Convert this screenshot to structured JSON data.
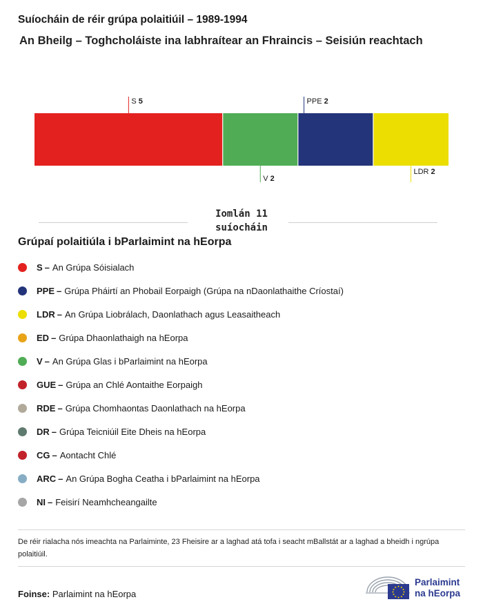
{
  "chart_data": {
    "type": "bar",
    "stacked": true,
    "orientation": "horizontal",
    "title": "Suíocháin de réir grúpa polaitiúil – 1989-1994",
    "subtitle": "An Bheilg – Toghcholáiste ina labhraítear an Fhraincis – Seisiún reachtach",
    "total_label": "Iomlán 11 suíocháin",
    "total": 11,
    "segments": [
      {
        "name": "S",
        "value": 5,
        "color": "#e3211f",
        "label_side": "top"
      },
      {
        "name": "V",
        "value": 2,
        "color": "#50ac55",
        "label_side": "bottom"
      },
      {
        "name": "PPE",
        "value": 2,
        "color": "#24347a",
        "label_side": "top"
      },
      {
        "name": "LDR",
        "value": 2,
        "color": "#ebde00",
        "label_side": "bottom"
      }
    ]
  },
  "legend": {
    "title": "Grúpaí polaitiúla i bParlaimint na hEorpa",
    "items": [
      {
        "abbr": "S",
        "label": "An Grúpa Sóisialach",
        "color": "#e3211f"
      },
      {
        "abbr": "PPE",
        "label": "Grúpa Pháirtí an Phobail Eorpaigh (Grúpa na nDaonlathaithe Críostaí)",
        "color": "#24347a"
      },
      {
        "abbr": "LDR",
        "label": "An Grúpa Liobrálach, Daonlathach agus Leasaitheach",
        "color": "#ebde00"
      },
      {
        "abbr": "ED",
        "label": "Grúpa Dhaonlathaigh na hEorpa",
        "color": "#e8a317"
      },
      {
        "abbr": "V",
        "label": "An Grúpa Glas i bParlaimint na hEorpa",
        "color": "#50ac55"
      },
      {
        "abbr": "GUE",
        "label": "Grúpa an Chlé Aontaithe Eorpaigh",
        "color": "#c2222a"
      },
      {
        "abbr": "RDE",
        "label": "Grúpa Chomhaontas Daonlathach na hEorpa",
        "color": "#b1a99a"
      },
      {
        "abbr": "DR",
        "label": "Grúpa Teicniúil Eite Dheis na hEorpa",
        "color": "#5f7a6e"
      },
      {
        "abbr": "CG",
        "label": "Aontacht Chlé",
        "color": "#c2222a"
      },
      {
        "abbr": "ARC",
        "label": "An Grúpa Bogha Ceatha i bParlaimint na hEorpa",
        "color": "#86adc4"
      },
      {
        "abbr": "NI",
        "label": "Feisirí Neamhcheangailte",
        "color": "#a6a6a6"
      }
    ]
  },
  "footnote": "De réir rialacha nós imeachta na Parlaiminte, 23 Fheisire ar a laghad atá tofa i seacht mBallstát ar a laghad a bheidh i ngrúpa polaitiúil.",
  "source": {
    "label": "Foinse:",
    "value": "Parlaimint na hEorpa"
  },
  "logo": {
    "line1": "Parlaimint",
    "line2": "na hEorpa"
  }
}
